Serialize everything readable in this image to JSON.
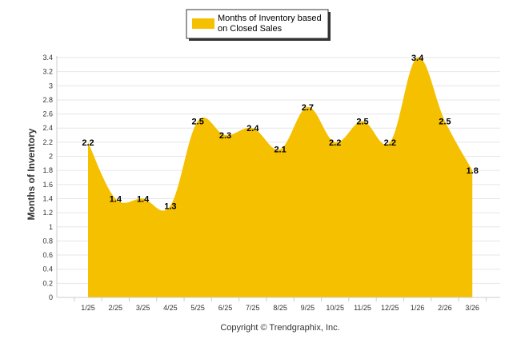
{
  "chart_data": {
    "type": "area",
    "ylabel": "Months of Inventory",
    "xlabel": "",
    "categories": [
      "1/25",
      "2/25",
      "3/25",
      "4/25",
      "5/25",
      "6/25",
      "7/25",
      "8/25",
      "9/25",
      "10/25",
      "11/25",
      "12/25",
      "1/26",
      "2/26",
      "3/26"
    ],
    "series": [
      {
        "name": "Months of Inventory based on Closed Sales",
        "values": [
          2.2,
          1.4,
          1.4,
          1.3,
          2.5,
          2.3,
          2.4,
          2.1,
          2.7,
          2.2,
          2.5,
          2.2,
          3.4,
          2.5,
          1.8
        ],
        "color": "#F5C000"
      }
    ],
    "data_labels": [
      "2.2",
      "1.4",
      "1.4",
      "1.3",
      "2.5",
      "2.3",
      "2.4",
      "2.1",
      "2.7",
      "2.2",
      "2.5",
      "2.2",
      "3.4",
      "2.5",
      "1.8"
    ],
    "ylim": [
      0,
      3.4
    ],
    "yticks": [
      0,
      0.2,
      0.4,
      0.6,
      0.8,
      1,
      1.2,
      1.4,
      1.6,
      1.8,
      2,
      2.2,
      2.4,
      2.6,
      2.8,
      3,
      3.2,
      3.4
    ],
    "ytick_labels": [
      "0",
      "0.2",
      "0.4",
      "0.6",
      "0.8",
      "1",
      "1.2",
      "1.4",
      "1.6",
      "1.8",
      "2",
      "2.2",
      "2.4",
      "2.6",
      "2.8",
      "3",
      "3.2",
      "3.4"
    ],
    "grid": true,
    "legend_position": "top-center"
  },
  "legend": {
    "label_line1": "Months of Inventory based",
    "label_line2": "on Closed Sales",
    "swatch_color": "#F5C000"
  },
  "footer": {
    "copyright": "Copyright © Trendgraphix, Inc."
  },
  "colors": {
    "fill": "#F5C000",
    "grid": "#E6E6E6",
    "axis": "#CCCCCC"
  }
}
